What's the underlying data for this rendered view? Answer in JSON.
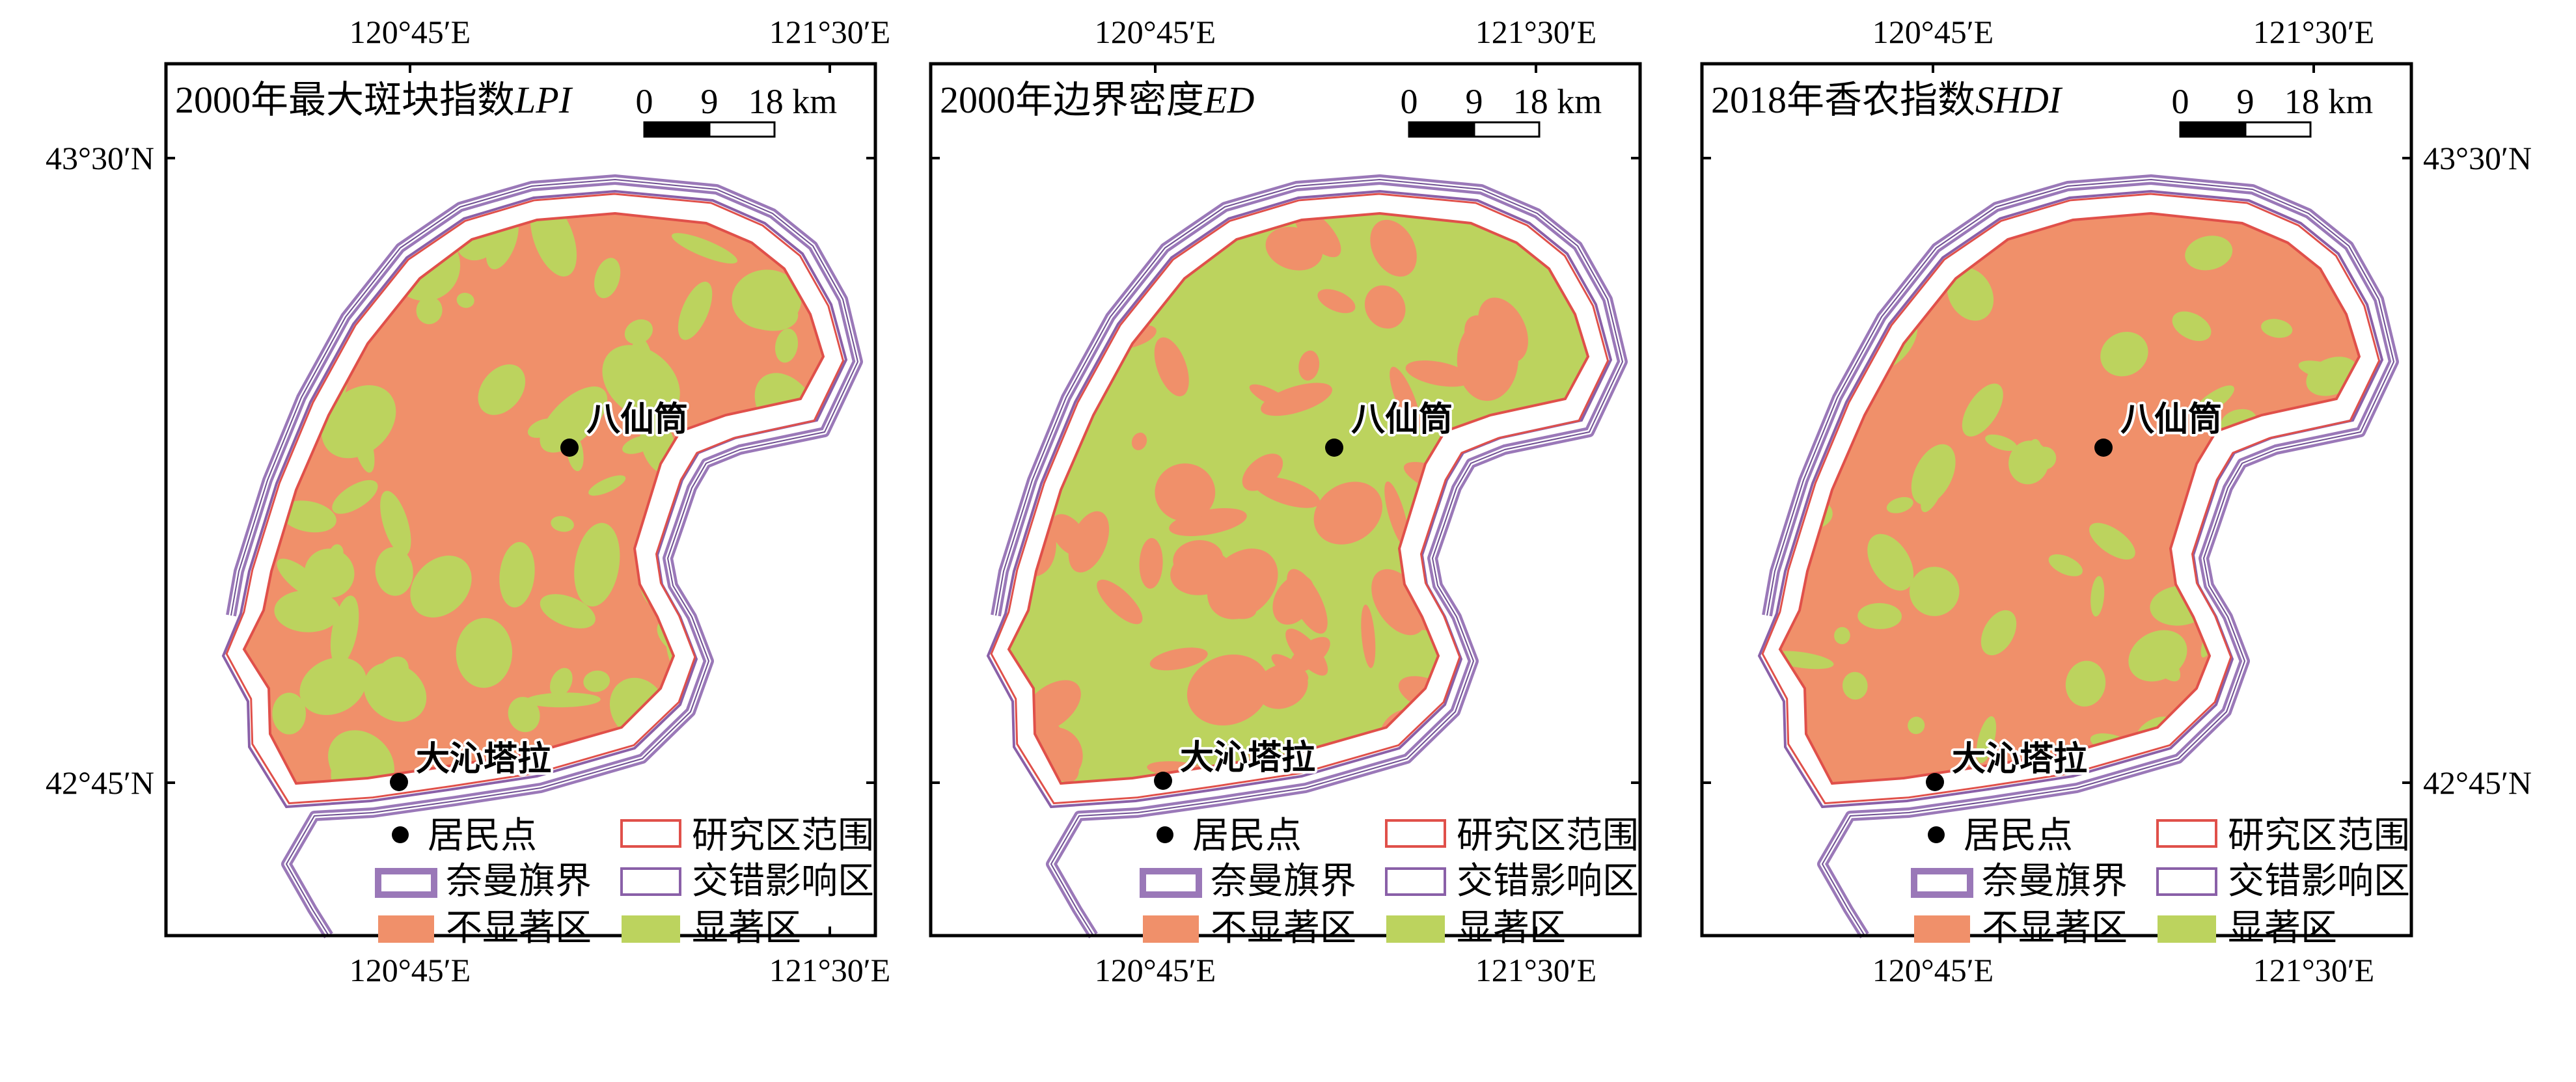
{
  "axes": {
    "lon_ticks": [
      "120°45′E",
      "121°30′E"
    ],
    "lat_ticks": [
      "43°30′N",
      "42°45′N"
    ]
  },
  "panels": [
    {
      "title_cn": "2000年最大斑块指数",
      "title_abbr": "LPI",
      "dominant": "不显著区"
    },
    {
      "title_cn": "2000年边界密度",
      "title_abbr": "ED",
      "dominant": "显著区"
    },
    {
      "title_cn": "2018年香农指数",
      "title_abbr": "SHDI",
      "dominant": "不显著区"
    }
  ],
  "places": [
    {
      "name": "八仙筒"
    },
    {
      "name": "大沁塔拉"
    }
  ],
  "scale_bar": {
    "labels": [
      "0",
      "9",
      "18 km"
    ]
  },
  "legend": {
    "settlement": "居民点",
    "study_area": "研究区范围",
    "naiman_boundary": "奈曼旗界",
    "ecotone": "交错影响区",
    "not_significant": "不显著区",
    "significant": "显著区"
  },
  "colors": {
    "not_significant": "#f0906a",
    "significant": "#bcd35e",
    "study_boundary": "#e0504a",
    "naiman_boundary": "#9a78b8",
    "ecotone_line": "#8a60a8"
  }
}
